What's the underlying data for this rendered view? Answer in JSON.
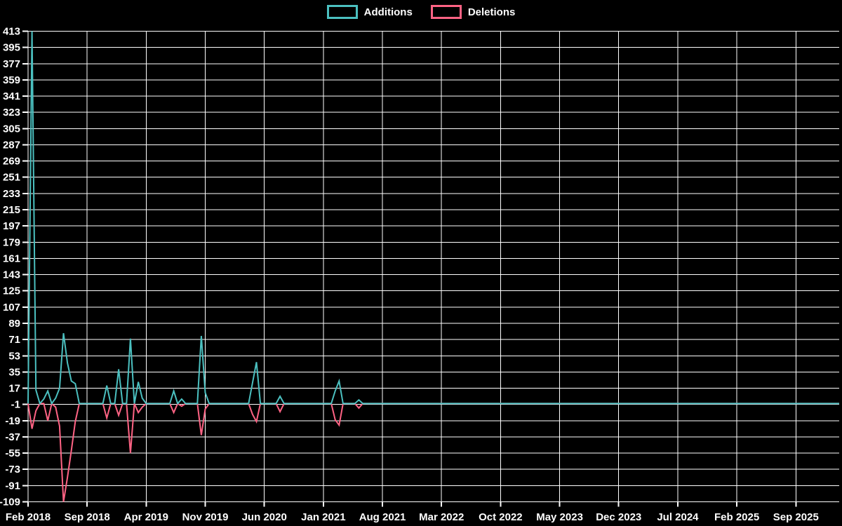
{
  "legend": {
    "items": [
      {
        "label": "Additions",
        "color": "#4bc0c0"
      },
      {
        "label": "Deletions",
        "color": "#ff6384"
      }
    ]
  },
  "chart": {
    "background": "#000000",
    "grid_color": "#ffffff",
    "text_color": "#ffffff",
    "tick_font_size": 15
  },
  "chart_data": {
    "type": "line",
    "title": "",
    "xlabel": "",
    "ylabel": "",
    "grid": true,
    "legend_position": "top-center",
    "ylim": [
      -109,
      413
    ],
    "y_ticks": [
      413,
      395,
      377,
      359,
      341,
      323,
      305,
      287,
      269,
      251,
      233,
      215,
      197,
      179,
      161,
      143,
      125,
      107,
      89,
      71,
      53,
      35,
      17,
      -1,
      -19,
      -37,
      -55,
      -73,
      -91,
      -109
    ],
    "x_tick_labels": [
      "Feb 2018",
      "Sep 2018",
      "Apr 2019",
      "Nov 2019",
      "Jun 2020",
      "Jan 2021",
      "Aug 2021",
      "Mar 2022",
      "Oct 2022",
      "May 2023",
      "Dec 2023",
      "Jul 2024",
      "Feb 2025",
      "Sep 2025"
    ],
    "x_tick_interval": 15,
    "series": [
      {
        "name": "Additions",
        "color": "#4bc0c0",
        "values": [
          0,
          413,
          15,
          0,
          5,
          14,
          0,
          6,
          17,
          78,
          45,
          25,
          22,
          0,
          0,
          0,
          0,
          0,
          0,
          0,
          20,
          0,
          0,
          38,
          0,
          0,
          72,
          0,
          24,
          6,
          0,
          0,
          0,
          0,
          0,
          0,
          0,
          14,
          0,
          5,
          0,
          0,
          0,
          0,
          75,
          12,
          0,
          0,
          0,
          0,
          0,
          0,
          0,
          0,
          0,
          0,
          0,
          23,
          46,
          0,
          0,
          0,
          0,
          0,
          8,
          0,
          0,
          0,
          0,
          0,
          0,
          0,
          0,
          0,
          0,
          0,
          0,
          0,
          14,
          25,
          0,
          0,
          0,
          0,
          4,
          0,
          0,
          0,
          0,
          0,
          0,
          0,
          0,
          0,
          0,
          0,
          0,
          0,
          0,
          0,
          0,
          0,
          0,
          0,
          0,
          0,
          0,
          0,
          0,
          0,
          0,
          0,
          0,
          0,
          0,
          0,
          0,
          0,
          0,
          0,
          0,
          0,
          0,
          0,
          0,
          0,
          0,
          0,
          0,
          0,
          0,
          0,
          0,
          0,
          0,
          0,
          0,
          0,
          0,
          0,
          0,
          0,
          0,
          0,
          0,
          0,
          0,
          0,
          0,
          0,
          0,
          0,
          0,
          0,
          0,
          0,
          0,
          0,
          0,
          0,
          0,
          0,
          0,
          0,
          0,
          0,
          0,
          0,
          0,
          0,
          0,
          0,
          0,
          0,
          0,
          0,
          0,
          0,
          0,
          0,
          0,
          0,
          0,
          0,
          0,
          0,
          0,
          0,
          0,
          0,
          0,
          0,
          0,
          0,
          0,
          0,
          0,
          0,
          0,
          0,
          0,
          0,
          0,
          0,
          0,
          0,
          0
        ]
      },
      {
        "name": "Deletions",
        "color": "#ff6384",
        "values": [
          0,
          -28,
          -8,
          0,
          0,
          -19,
          0,
          -4,
          -25,
          -109,
          -82,
          -52,
          -20,
          0,
          0,
          0,
          0,
          0,
          0,
          0,
          -16,
          0,
          0,
          -13,
          0,
          0,
          -55,
          0,
          -10,
          -4,
          0,
          0,
          0,
          0,
          0,
          0,
          0,
          -10,
          0,
          -3,
          0,
          0,
          0,
          0,
          -35,
          -6,
          0,
          0,
          0,
          0,
          0,
          0,
          0,
          0,
          0,
          0,
          0,
          -12,
          -20,
          0,
          0,
          0,
          0,
          0,
          -9,
          0,
          0,
          0,
          0,
          0,
          0,
          0,
          0,
          0,
          0,
          0,
          0,
          0,
          -18,
          -24,
          0,
          0,
          0,
          0,
          -5,
          0,
          0,
          0,
          0,
          0,
          0,
          0,
          0,
          0,
          0,
          0,
          0,
          0,
          0,
          0,
          0,
          0,
          0,
          0,
          0,
          0,
          0,
          0,
          0,
          0,
          0,
          0,
          0,
          0,
          0,
          0,
          0,
          0,
          0,
          0,
          0,
          0,
          0,
          0,
          0,
          0,
          0,
          0,
          0,
          0,
          0,
          0,
          0,
          0,
          0,
          0,
          0,
          0,
          0,
          0,
          0,
          0,
          0,
          0,
          0,
          0,
          0,
          0,
          0,
          0,
          0,
          0,
          0,
          0,
          0,
          0,
          0,
          0,
          0,
          0,
          0,
          0,
          0,
          0,
          0,
          0,
          0,
          0,
          0,
          0,
          0,
          0,
          0,
          0,
          0,
          0,
          0,
          0,
          0,
          0,
          0,
          0,
          0,
          0,
          0,
          0,
          0,
          0,
          0,
          0,
          0,
          0,
          0,
          0,
          0,
          0,
          0,
          0,
          0,
          0,
          0,
          0,
          0,
          0,
          0,
          0,
          0
        ]
      }
    ]
  }
}
